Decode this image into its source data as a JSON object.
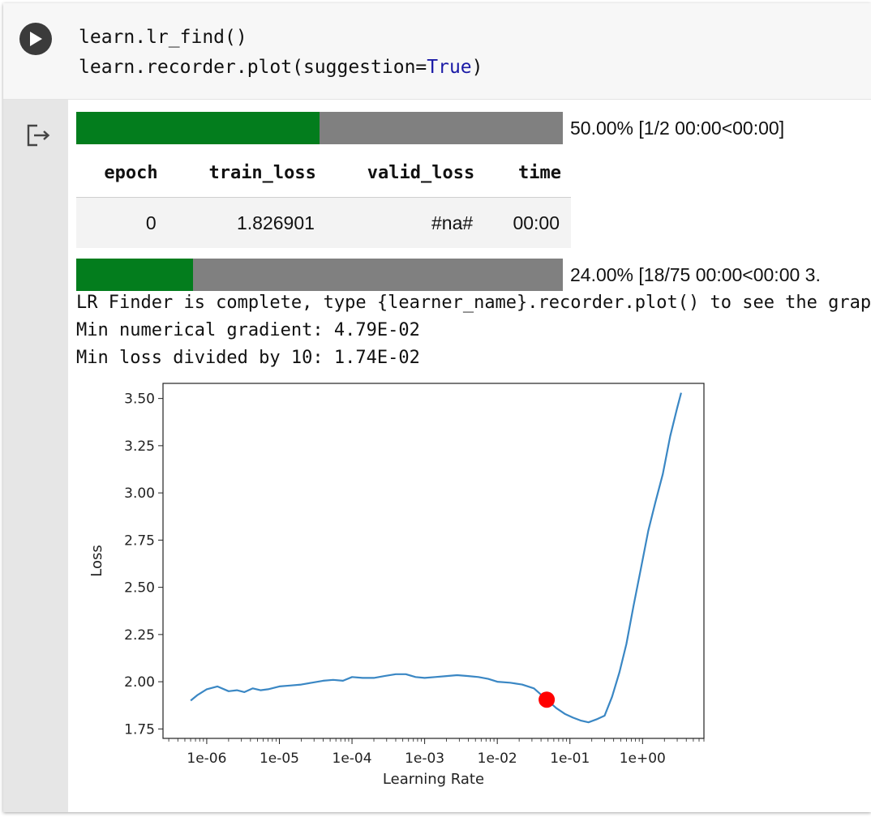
{
  "code": {
    "line1": "learn.lr_find()",
    "line2_prefix": "learn.recorder.plot(suggestion=",
    "line2_keyword": "True",
    "line2_suffix": ")"
  },
  "run_button": {
    "icon": "play-icon"
  },
  "output_icon": "output-exit-icon",
  "progress_top": {
    "fraction": 0.5,
    "text": "50.00% [1/2 00:00<00:00]"
  },
  "results_table": {
    "headers": [
      "epoch",
      "train_loss",
      "valid_loss",
      "time"
    ],
    "rows": [
      [
        "0",
        "1.826901",
        "#na#",
        "00:00"
      ]
    ]
  },
  "progress_bottom": {
    "fraction": 0.24,
    "text": "24.00% [18/75 00:00<00:00 3."
  },
  "log": {
    "line1": "LR Finder is complete, type {learner_name}.recorder.plot() to see the graph.",
    "line2": "Min numerical gradient: 4.79E-02",
    "line3": "Min loss divided by 10: 1.74E-02"
  },
  "colors": {
    "progress_fill": "#037d1d",
    "progress_track": "#808080",
    "line": "#3a87c4",
    "marker": "#ff0000",
    "keyword": "#1a1aa6"
  },
  "chart_data": {
    "type": "line",
    "xscale": "log",
    "xlabel": "Learning Rate",
    "ylabel": "Loss",
    "xlim": [
      2.5e-07,
      7
    ],
    "ylim": [
      1.7,
      3.58
    ],
    "xticks": [
      1e-06,
      1e-05,
      0.0001,
      0.001,
      0.01,
      0.1,
      1
    ],
    "xticklabels": [
      "1e-06",
      "1e-05",
      "1e-04",
      "1e-03",
      "1e-02",
      "1e-01",
      "1e+00"
    ],
    "yticks": [
      1.75,
      2.0,
      2.25,
      2.5,
      2.75,
      3.0,
      3.25,
      3.5
    ],
    "yticklabels": [
      "1.75",
      "2.00",
      "2.25",
      "2.50",
      "2.75",
      "3.00",
      "3.25",
      "3.50"
    ],
    "series": [
      {
        "x": [
          6e-07,
          7.5e-07,
          1e-06,
          1.4e-06,
          2e-06,
          2.6e-06,
          3.3e-06,
          4.3e-06,
          5.5e-06,
          7e-06,
          1e-05,
          1.4e-05,
          2e-05,
          2.8e-05,
          4e-05,
          5.5e-05,
          7.5e-05,
          0.0001,
          0.00014,
          0.0002,
          0.00028,
          0.0004,
          0.00055,
          0.00075,
          0.001,
          0.0014,
          0.002,
          0.0028,
          0.004,
          0.0055,
          0.0075,
          0.01,
          0.015,
          0.022,
          0.032,
          0.0479,
          0.065,
          0.085,
          0.11,
          0.14,
          0.18,
          0.23,
          0.3,
          0.38,
          0.48,
          0.6,
          0.75,
          0.95,
          1.2,
          1.5,
          1.9,
          2.4,
          3.0,
          3.4
        ],
        "y": [
          1.9,
          1.93,
          1.96,
          1.975,
          1.95,
          1.955,
          1.945,
          1.965,
          1.955,
          1.96,
          1.975,
          1.98,
          1.985,
          1.995,
          2.005,
          2.01,
          2.005,
          2.025,
          2.02,
          2.02,
          2.03,
          2.04,
          2.04,
          2.025,
          2.02,
          2.025,
          2.03,
          2.035,
          2.03,
          2.025,
          2.015,
          2.0,
          1.995,
          1.985,
          1.965,
          1.905,
          1.86,
          1.83,
          1.81,
          1.795,
          1.785,
          1.8,
          1.82,
          1.92,
          2.05,
          2.2,
          2.4,
          2.6,
          2.8,
          2.95,
          3.1,
          3.3,
          3.45,
          3.53
        ]
      }
    ],
    "suggestion": {
      "x": 0.0479,
      "y": 1.905
    }
  }
}
